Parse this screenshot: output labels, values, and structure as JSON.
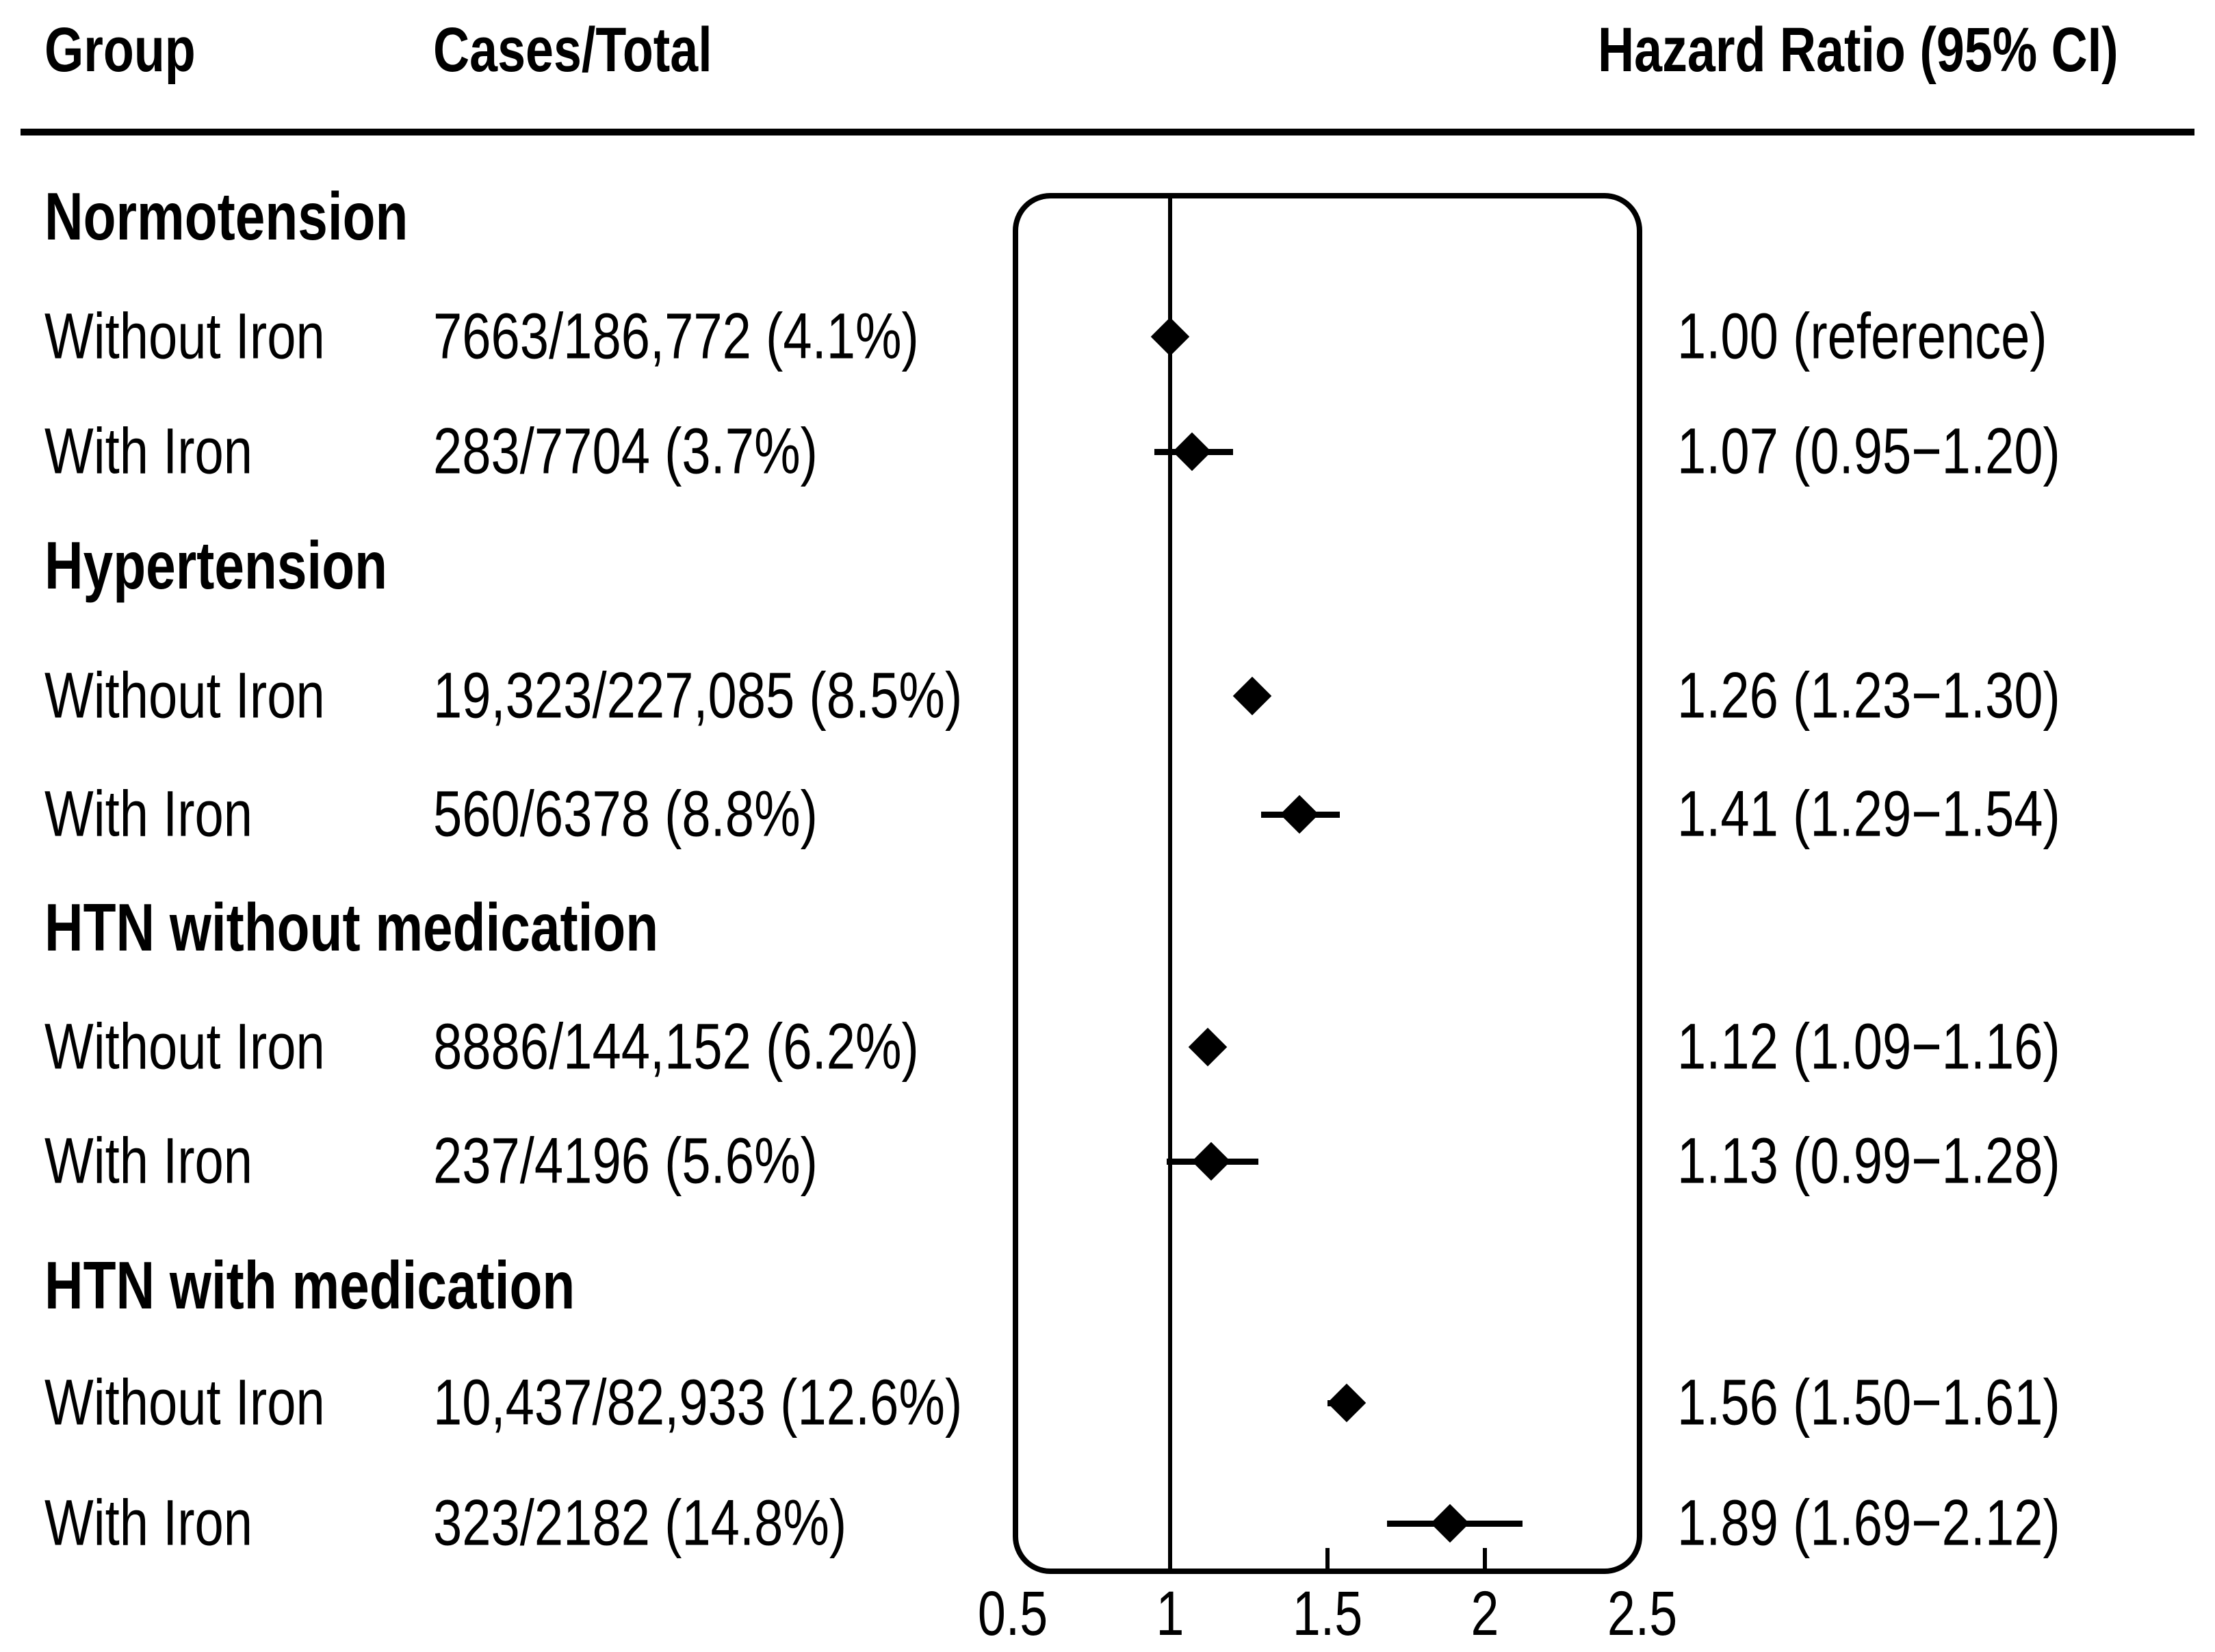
{
  "header": {
    "group": "Group",
    "cases_total": "Cases/Total",
    "hazard_ratio": "Hazard Ratio (95% CI)"
  },
  "sections": [
    {
      "label": "Normotension",
      "rows": [
        {
          "group": "Without Iron",
          "cases": "7663/186,772 (4.1%)",
          "hr_label": "1.00 (reference)",
          "hr": 1.0,
          "ci_low": null,
          "ci_high": null
        },
        {
          "group": "With Iron",
          "cases": "283/7704 (3.7%)",
          "hr_label": "1.07 (0.95−1.20)",
          "hr": 1.07,
          "ci_low": 0.95,
          "ci_high": 1.2
        }
      ]
    },
    {
      "label": "Hypertension",
      "rows": [
        {
          "group": "Without Iron",
          "cases": "19,323/227,085 (8.5%)",
          "hr_label": "1.26 (1.23−1.30)",
          "hr": 1.26,
          "ci_low": 1.23,
          "ci_high": 1.3
        },
        {
          "group": "With Iron",
          "cases": "560/6378 (8.8%)",
          "hr_label": "1.41 (1.29−1.54)",
          "hr": 1.41,
          "ci_low": 1.29,
          "ci_high": 1.54
        }
      ]
    },
    {
      "label": "HTN without medication",
      "rows": [
        {
          "group": "Without Iron",
          "cases": "8886/144,152 (6.2%)",
          "hr_label": "1.12 (1.09−1.16)",
          "hr": 1.12,
          "ci_low": 1.09,
          "ci_high": 1.16
        },
        {
          "group": "With Iron",
          "cases": "237/4196 (5.6%)",
          "hr_label": "1.13 (0.99−1.28)",
          "hr": 1.13,
          "ci_low": 0.99,
          "ci_high": 1.28
        }
      ]
    },
    {
      "label": "HTN with medication",
      "rows": [
        {
          "group": "Without Iron",
          "cases": "10,437/82,933 (12.6%)",
          "hr_label": "1.56 (1.50−1.61)",
          "hr": 1.56,
          "ci_low": 1.5,
          "ci_high": 1.61
        },
        {
          "group": "With Iron",
          "cases": "323/2182 (14.8%)",
          "hr_label": "1.89 (1.69−2.12)",
          "hr": 1.89,
          "ci_low": 1.69,
          "ci_high": 2.12
        }
      ]
    }
  ],
  "axis": {
    "labels": [
      {
        "text": "0.5",
        "value": 0.5
      },
      {
        "text": "1",
        "value": 1
      },
      {
        "text": "1.5",
        "value": 1.5
      },
      {
        "text": "2",
        "value": 2
      },
      {
        "text": "2.5",
        "value": 2.5
      }
    ],
    "inner_tick_values": [
      1.5,
      2
    ],
    "reference_value": 1,
    "range": [
      0.5,
      2.5
    ]
  },
  "colors": {
    "foreground": "#000000",
    "background": "#ffffff"
  },
  "chart_data": {
    "type": "scatter",
    "subtype": "forest-plot",
    "title": "Hazard Ratio (95% CI)",
    "xlabel": "Hazard Ratio",
    "ylabel": "",
    "xlim": [
      0.5,
      2.5
    ],
    "x_ticks": [
      0.5,
      1,
      1.5,
      2,
      2.5
    ],
    "reference_line_x": 1.0,
    "grid": false,
    "legend": "none",
    "marker": "filled-diamond",
    "rows": [
      {
        "section": "Normotension",
        "group": "Without Iron",
        "cases": 7663,
        "total": 186772,
        "percent": 4.1,
        "hr": 1.0,
        "ci_low": null,
        "ci_high": null,
        "note": "reference"
      },
      {
        "section": "Normotension",
        "group": "With Iron",
        "cases": 283,
        "total": 7704,
        "percent": 3.7,
        "hr": 1.07,
        "ci_low": 0.95,
        "ci_high": 1.2
      },
      {
        "section": "Hypertension",
        "group": "Without Iron",
        "cases": 19323,
        "total": 227085,
        "percent": 8.5,
        "hr": 1.26,
        "ci_low": 1.23,
        "ci_high": 1.3
      },
      {
        "section": "Hypertension",
        "group": "With Iron",
        "cases": 560,
        "total": 6378,
        "percent": 8.8,
        "hr": 1.41,
        "ci_low": 1.29,
        "ci_high": 1.54
      },
      {
        "section": "HTN without medication",
        "group": "Without Iron",
        "cases": 8886,
        "total": 144152,
        "percent": 6.2,
        "hr": 1.12,
        "ci_low": 1.09,
        "ci_high": 1.16
      },
      {
        "section": "HTN without medication",
        "group": "With Iron",
        "cases": 237,
        "total": 4196,
        "percent": 5.6,
        "hr": 1.13,
        "ci_low": 0.99,
        "ci_high": 1.28
      },
      {
        "section": "HTN with medication",
        "group": "Without Iron",
        "cases": 10437,
        "total": 82933,
        "percent": 12.6,
        "hr": 1.56,
        "ci_low": 1.5,
        "ci_high": 1.61
      },
      {
        "section": "HTN with medication",
        "group": "With Iron",
        "cases": 323,
        "total": 2182,
        "percent": 14.8,
        "hr": 1.89,
        "ci_low": 1.69,
        "ci_high": 2.12
      }
    ]
  }
}
